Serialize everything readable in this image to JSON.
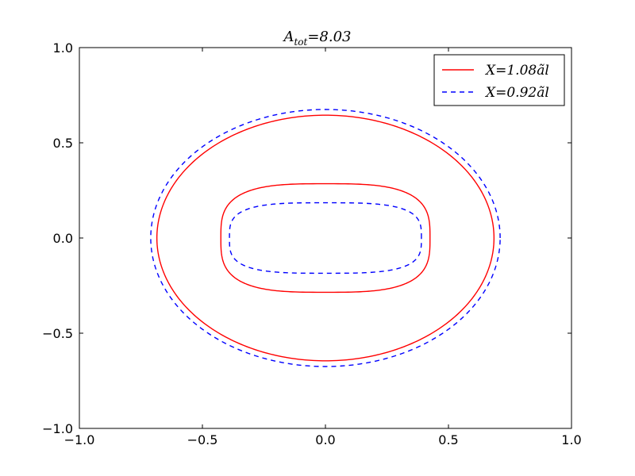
{
  "chart_data": {
    "type": "line",
    "title": "A_tot = 8.03",
    "title_parts": {
      "base": "A",
      "sub": "tot",
      "rest": "=8.03"
    },
    "xlabel": "",
    "ylabel": "",
    "xlim": [
      -1.0,
      1.0
    ],
    "ylim": [
      -1.0,
      1.0
    ],
    "x_ticks": [
      -1.0,
      -0.5,
      0.0,
      0.5,
      1.0
    ],
    "y_ticks": [
      -1.0,
      -0.5,
      0.0,
      0.5,
      1.0
    ],
    "x_tick_labels": [
      "−1.0",
      "−0.5",
      "0.0",
      "0.5",
      "1.0"
    ],
    "y_tick_labels": [
      "−1.0",
      "−0.5",
      "0.0",
      "0.5",
      "1.0"
    ],
    "grid": false,
    "legend_position": "top-right",
    "series": [
      {
        "name": "X=1.08ãl",
        "color": "#ff0000",
        "style": "solid",
        "contours": [
          {
            "shape": "ellipse",
            "cx": 0.0,
            "cy": 0.0,
            "rx": 0.685,
            "ry": 0.645
          },
          {
            "shape": "superellipse",
            "cx": 0.0,
            "cy": 0.0,
            "rx": 0.425,
            "ry": 0.285,
            "n": 3.2
          }
        ]
      },
      {
        "name": "X=0.92ãl",
        "color": "#0000ff",
        "style": "dashed",
        "contours": [
          {
            "shape": "ellipse",
            "cx": 0.0,
            "cy": 0.0,
            "rx": 0.71,
            "ry": 0.675
          },
          {
            "shape": "superellipse",
            "cx": 0.0,
            "cy": 0.0,
            "rx": 0.39,
            "ry": 0.185,
            "n": 3.4
          }
        ]
      }
    ]
  }
}
